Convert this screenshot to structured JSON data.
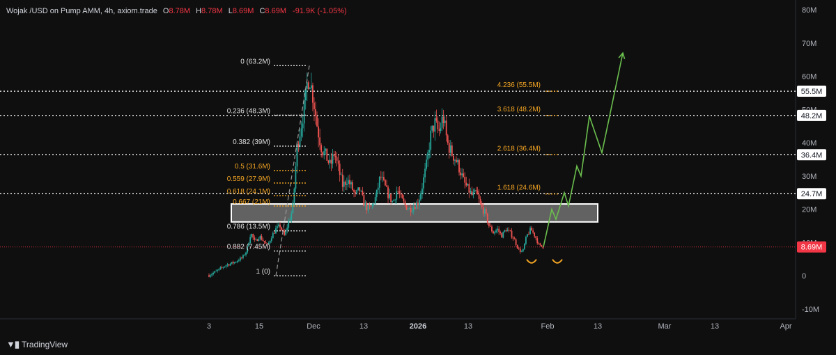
{
  "header": {
    "symbol": "Wojak /USD on Pump AMM, 4h, axiom.trade",
    "o_label": "O",
    "o_value": "8.78M",
    "h_label": "H",
    "h_value": "8.78M",
    "l_label": "L",
    "l_value": "8.69M",
    "c_label": "C",
    "c_value": "8.69M",
    "change": "-91.9K (-1.05%)"
  },
  "branding": {
    "name": "TradingView"
  },
  "colors": {
    "up": "#26a69a",
    "down": "#ef5350",
    "fib_white": "#e0e0e0",
    "fib_orange": "#f5a623",
    "projection": "#6bbf4e",
    "price_line": "#f23645",
    "background": "#0f0f0f"
  },
  "chart_data": {
    "type": "candlestick",
    "timeframe": "4h",
    "ylim": [
      -10,
      80
    ],
    "y_ticks": [
      {
        "value": 80,
        "label": "80M"
      },
      {
        "value": 70,
        "label": "70M"
      },
      {
        "value": 60,
        "label": "60M"
      },
      {
        "value": 50,
        "label": "50M"
      },
      {
        "value": 40,
        "label": "40M"
      },
      {
        "value": 30,
        "label": "30M"
      },
      {
        "value": 20,
        "label": "20M"
      },
      {
        "value": 10,
        "label": "10M"
      },
      {
        "value": 0,
        "label": "0"
      },
      {
        "value": -10,
        "label": "-10M"
      }
    ],
    "x_ticks": [
      {
        "value": 0,
        "label": "3"
      },
      {
        "value": 12,
        "label": "15"
      },
      {
        "value": 25,
        "label": "Dec"
      },
      {
        "value": 37,
        "label": "13"
      },
      {
        "value": 50,
        "label": "2026"
      },
      {
        "value": 62,
        "label": "13"
      },
      {
        "value": 81,
        "label": "Feb"
      },
      {
        "value": 93,
        "label": "13"
      },
      {
        "value": 109,
        "label": "Mar"
      },
      {
        "value": 121,
        "label": "13"
      },
      {
        "value": 138,
        "label": "Apr"
      }
    ],
    "price_path": [
      [
        0,
        0.2
      ],
      [
        2,
        1.5
      ],
      [
        4,
        3.2
      ],
      [
        6,
        4.0
      ],
      [
        8,
        5.5
      ],
      [
        9,
        7.5
      ],
      [
        10,
        13
      ],
      [
        11,
        10
      ],
      [
        12,
        12
      ],
      [
        14,
        9
      ],
      [
        15,
        12
      ],
      [
        16,
        14
      ],
      [
        17,
        15
      ],
      [
        18,
        12
      ],
      [
        19,
        16
      ],
      [
        20,
        20
      ],
      [
        20.5,
        28
      ],
      [
        21,
        38
      ],
      [
        22,
        45
      ],
      [
        23,
        52
      ],
      [
        23.5,
        58
      ],
      [
        24,
        60
      ],
      [
        25,
        53
      ],
      [
        26,
        44
      ],
      [
        27,
        38
      ],
      [
        28,
        36
      ],
      [
        29,
        33
      ],
      [
        30,
        37
      ],
      [
        31,
        32
      ],
      [
        32,
        27
      ],
      [
        33,
        29
      ],
      [
        34,
        27
      ],
      [
        35,
        24
      ],
      [
        36,
        26
      ],
      [
        37,
        22
      ],
      [
        38,
        20
      ],
      [
        39,
        21
      ],
      [
        40,
        24
      ],
      [
        41,
        30
      ],
      [
        42,
        27
      ],
      [
        43,
        24
      ],
      [
        44,
        22
      ],
      [
        45,
        26
      ],
      [
        46,
        23
      ],
      [
        47,
        21
      ],
      [
        48,
        20
      ],
      [
        49,
        21
      ],
      [
        50,
        22
      ],
      [
        51,
        27
      ],
      [
        52,
        33
      ],
      [
        53,
        42
      ],
      [
        54,
        46
      ],
      [
        55,
        43
      ],
      [
        56,
        48
      ],
      [
        57,
        40
      ],
      [
        58,
        37
      ],
      [
        59,
        35
      ],
      [
        60,
        32
      ],
      [
        61,
        28
      ],
      [
        62,
        26
      ],
      [
        63,
        24
      ],
      [
        64,
        25
      ],
      [
        65,
        21
      ],
      [
        66,
        19
      ],
      [
        67,
        15
      ],
      [
        68,
        13
      ],
      [
        69,
        14
      ],
      [
        70,
        12
      ],
      [
        71,
        14
      ],
      [
        72,
        13
      ],
      [
        73,
        11
      ],
      [
        74,
        8
      ],
      [
        75,
        7
      ],
      [
        76,
        12
      ],
      [
        77,
        14
      ],
      [
        78,
        12
      ],
      [
        79,
        9
      ],
      [
        80,
        8.69
      ]
    ],
    "fib_retracement": [
      {
        "label": "0 (63.2M)",
        "value": 63.2,
        "color": "white"
      },
      {
        "label": "0.236 (48.3M)",
        "value": 48.3,
        "color": "white"
      },
      {
        "label": "0.382 (39M)",
        "value": 39,
        "color": "white"
      },
      {
        "label": "0.5 (31.6M)",
        "value": 31.6,
        "color": "orange"
      },
      {
        "label": "0.559 (27.9M)",
        "value": 27.9,
        "color": "orange"
      },
      {
        "label": "0.618 (24.1M)",
        "value": 24.1,
        "color": "orange"
      },
      {
        "label": "0.667 (21M)",
        "value": 21,
        "color": "orange"
      },
      {
        "label": "0.786 (13.5M)",
        "value": 13.5,
        "color": "white"
      },
      {
        "label": "0.882 (7.45M)",
        "value": 7.45,
        "color": "white"
      },
      {
        "label": "1 (0)",
        "value": 0,
        "color": "white"
      }
    ],
    "fib_extension": [
      {
        "label": "4.236 (55.5M)",
        "value": 55.5
      },
      {
        "label": "3.618 (48.2M)",
        "value": 48.2
      },
      {
        "label": "2.618 (36.4M)",
        "value": 36.4
      },
      {
        "label": "1.618 (24.6M)",
        "value": 24.6
      }
    ],
    "horizontal_levels": [
      {
        "label": "55.5M",
        "value": 55.5
      },
      {
        "label": "48.2M",
        "value": 48.2
      },
      {
        "label": "36.4M",
        "value": 36.4
      },
      {
        "label": "24.7M",
        "value": 24.7
      }
    ],
    "last_price": {
      "label": "8.69M",
      "value": 8.69
    },
    "support_zone": {
      "from": 16.2,
      "to": 21.6
    },
    "projection_path": [
      [
        80,
        8.69
      ],
      [
        82,
        20
      ],
      [
        83,
        17
      ],
      [
        85,
        25
      ],
      [
        86,
        21
      ],
      [
        88,
        33
      ],
      [
        89,
        30
      ],
      [
        91,
        48
      ],
      [
        94,
        37
      ],
      [
        99,
        67
      ]
    ]
  }
}
